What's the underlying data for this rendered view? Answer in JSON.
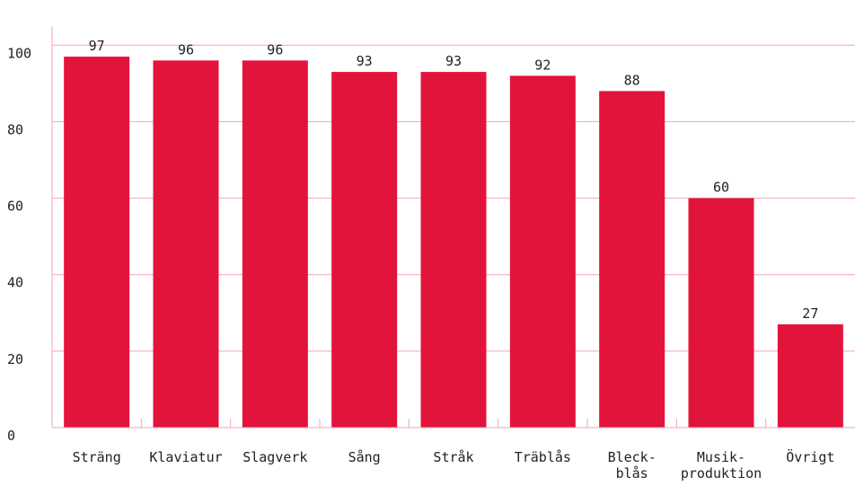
{
  "chart_data": {
    "type": "bar",
    "categories": [
      [
        "Sträng"
      ],
      [
        "Klaviatur"
      ],
      [
        "Slagverk"
      ],
      [
        "Sång"
      ],
      [
        "Stråk"
      ],
      [
        "Träblås"
      ],
      [
        "Bleck-",
        "blås"
      ],
      [
        "Musik-",
        "produktion"
      ],
      [
        "Övrigt"
      ]
    ],
    "values": [
      97,
      96,
      96,
      93,
      93,
      92,
      88,
      60,
      27
    ],
    "value_labels": [
      "97",
      "96",
      "96",
      "93",
      "93",
      "92",
      "88",
      "60",
      "27"
    ],
    "y_ticks": [
      "0",
      "20",
      "40",
      "60",
      "80",
      "100"
    ],
    "ylim": [
      0,
      105
    ],
    "grid": true,
    "colors": {
      "bar": "#e3143b",
      "grid": "#f2a6b4",
      "axis": "#f2a6b4",
      "text": "#222222"
    }
  }
}
